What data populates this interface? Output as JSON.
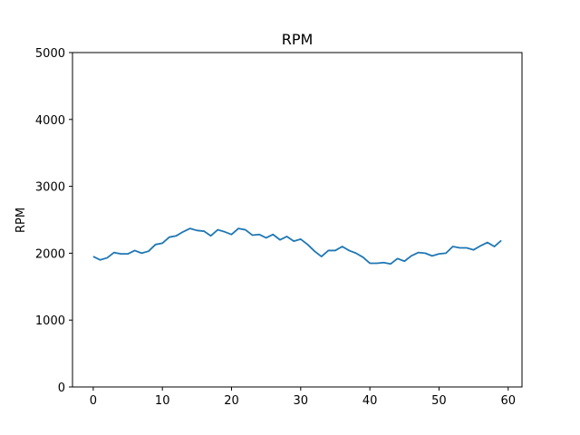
{
  "chart_data": {
    "type": "line",
    "title": "RPM",
    "xlabel": "",
    "ylabel": "RPM",
    "xlim": [
      -3,
      62
    ],
    "ylim": [
      0,
      5000
    ],
    "x_ticks": [
      0,
      10,
      20,
      30,
      40,
      50,
      60
    ],
    "y_ticks": [
      0,
      1000,
      2000,
      3000,
      4000,
      5000
    ],
    "grid": false,
    "legend": "none",
    "line_color": "#1f77b4",
    "series": [
      {
        "x": [
          0,
          1,
          2,
          3,
          4,
          5,
          6,
          7,
          8,
          9,
          10,
          11,
          12,
          13,
          14,
          15,
          16,
          17,
          18,
          19,
          20,
          21,
          22,
          23,
          24,
          25,
          26,
          27,
          28,
          29,
          30,
          31,
          32,
          33,
          34,
          35,
          36,
          37,
          38,
          39,
          40,
          41,
          42,
          43,
          44,
          45,
          46,
          47,
          48,
          49,
          50,
          51,
          52,
          53,
          54,
          55,
          56,
          57,
          58,
          59
        ],
        "values": [
          1950,
          1900,
          1930,
          2010,
          1990,
          1990,
          2040,
          2000,
          2030,
          2130,
          2150,
          2240,
          2260,
          2320,
          2370,
          2340,
          2330,
          2260,
          2350,
          2320,
          2280,
          2370,
          2350,
          2270,
          2280,
          2230,
          2280,
          2200,
          2250,
          2180,
          2210,
          2130,
          2030,
          1950,
          2040,
          2040,
          2100,
          2040,
          2000,
          1940,
          1850,
          1850,
          1860,
          1840,
          1920,
          1880,
          1960,
          2010,
          2000,
          1960,
          1990,
          2000,
          2100,
          2080,
          2080,
          2050,
          2110,
          2160,
          2100,
          2190
        ]
      }
    ]
  }
}
